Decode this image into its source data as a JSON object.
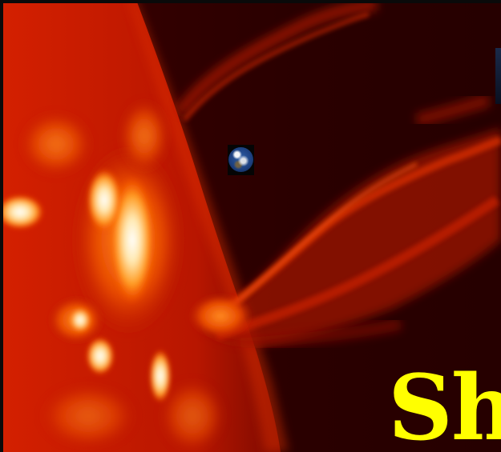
{
  "image": {
    "subject": "solar-flare-with-earth-scale",
    "colors": {
      "background": "#2a0000",
      "sun_base": "#c01800",
      "flare_hot": "#ffffff",
      "flare_warm": "#ff9a20",
      "caption": "#ffff00"
    }
  },
  "overlay": {
    "caption_text": "Sh"
  },
  "icons": {
    "earth": "earth-icon"
  }
}
